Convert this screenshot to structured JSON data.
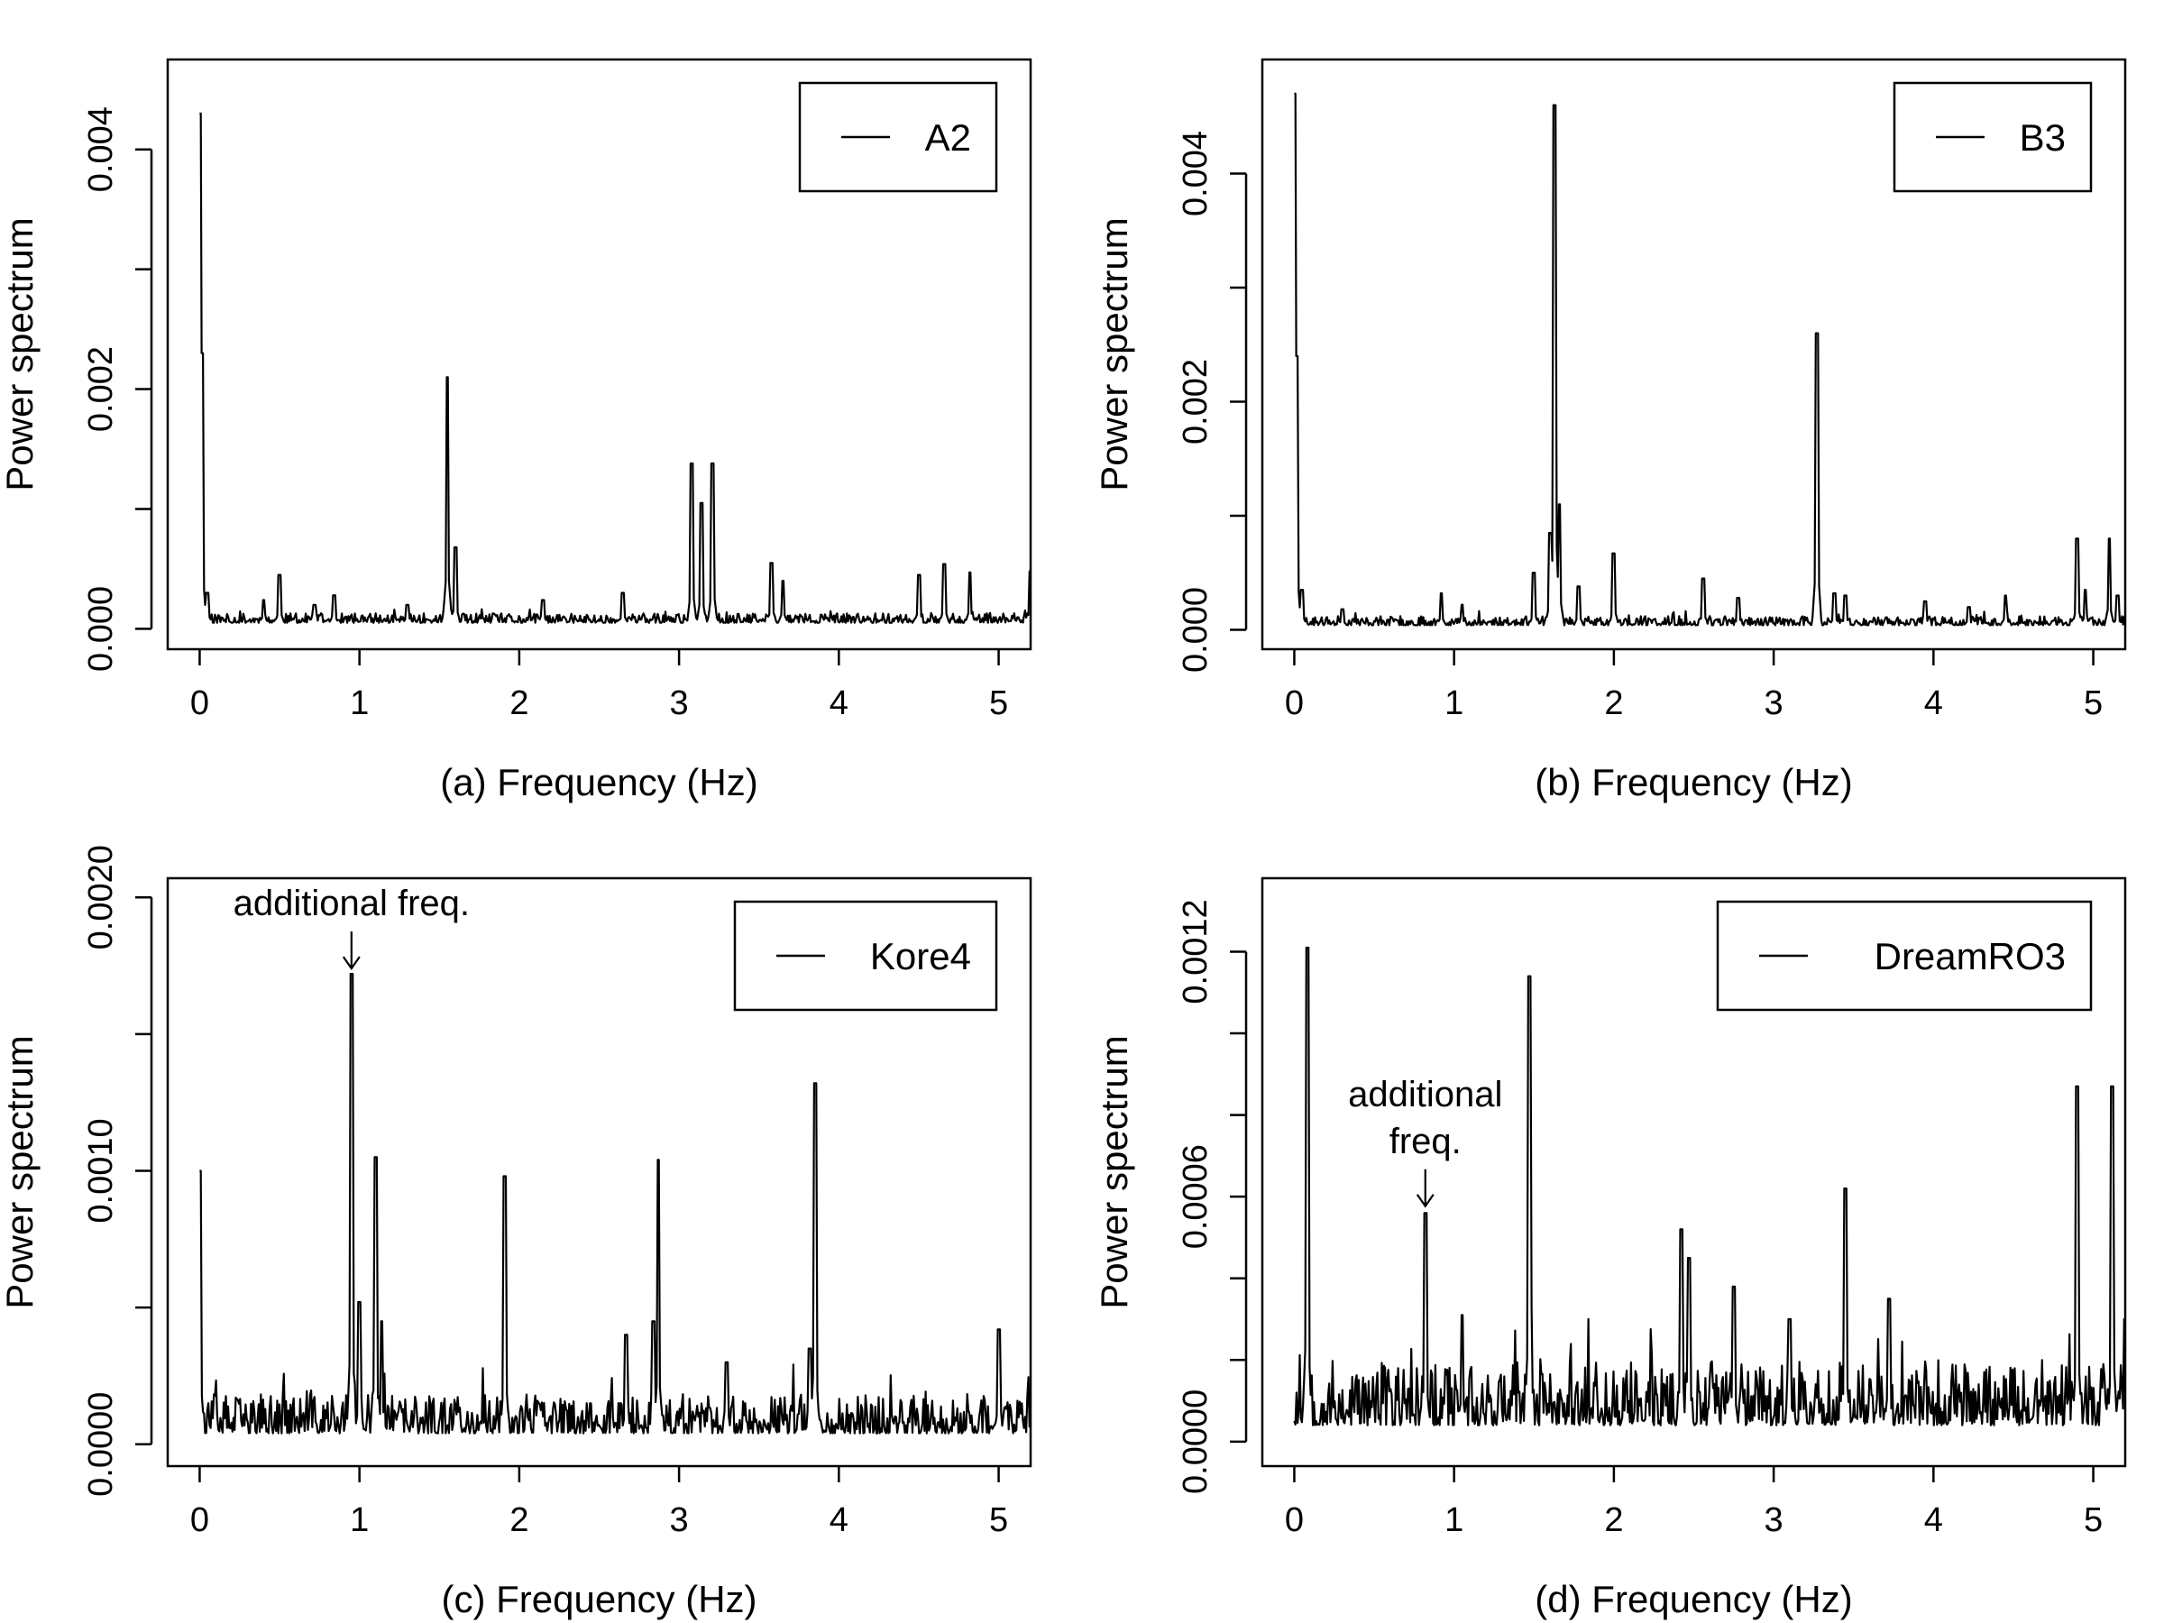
{
  "chart_data": [
    {
      "type": "line",
      "panel": "a",
      "xlabel": "(a) Frequency (Hz)",
      "ylabel": "Power spectrum",
      "xlim": [
        -0.2,
        5.2
      ],
      "ylim": [
        -0.00017,
        0.00475
      ],
      "xticks": [
        0,
        1,
        2,
        3,
        4,
        5
      ],
      "xtick_labels": [
        "0",
        "1",
        "2",
        "3",
        "4",
        "5"
      ],
      "yticks": [
        0,
        0.001,
        0.002,
        0.003,
        0.004
      ],
      "ytick_labels": [
        "0.000",
        "",
        "0.002",
        "",
        "0.004"
      ],
      "legend": "A2",
      "legend_position": "top-right",
      "series": [
        {
          "name": "A2",
          "baseline": 5e-05,
          "noise": 5e-05,
          "seed": 11,
          "peaks": [
            [
              0,
              0.0043
            ],
            [
              0.012,
              0.0023
            ],
            [
              0.05,
              0.0003
            ],
            [
              0.4,
              0.00024
            ],
            [
              0.5,
              0.00045
            ],
            [
              0.72,
              0.0002
            ],
            [
              0.84,
              0.00028
            ],
            [
              1.3,
              0.0002
            ],
            [
              1.55,
              0.0021
            ],
            [
              1.6,
              0.00068
            ],
            [
              2.15,
              0.00024
            ],
            [
              2.65,
              0.0003
            ],
            [
              3.08,
              0.00138
            ],
            [
              3.14,
              0.00105
            ],
            [
              3.21,
              0.00138
            ],
            [
              3.58,
              0.00055
            ],
            [
              3.65,
              0.0004
            ],
            [
              4.5,
              0.00045
            ],
            [
              4.66,
              0.00054
            ],
            [
              4.82,
              0.00047
            ],
            [
              5.2,
              0.00048
            ]
          ]
        }
      ]
    },
    {
      "type": "line",
      "panel": "b",
      "xlabel": "(b) Frequency (Hz)",
      "ylabel": "Power spectrum",
      "xlim": [
        -0.2,
        5.2
      ],
      "ylim": [
        -0.00017,
        0.005
      ],
      "xticks": [
        0,
        1,
        2,
        3,
        4,
        5
      ],
      "xtick_labels": [
        "0",
        "1",
        "2",
        "3",
        "4",
        "5"
      ],
      "yticks": [
        0,
        0.001,
        0.002,
        0.003,
        0.004
      ],
      "ytick_labels": [
        "0.000",
        "",
        "0.002",
        "",
        "0.004"
      ],
      "legend": "B3",
      "legend_position": "top-right",
      "series": [
        {
          "name": "B3",
          "baseline": 4e-05,
          "noise": 5e-05,
          "seed": 23,
          "peaks": [
            [
              0,
              0.0047
            ],
            [
              0.012,
              0.0024
            ],
            [
              0.05,
              0.00035
            ],
            [
              0.3,
              0.00018
            ],
            [
              0.92,
              0.00032
            ],
            [
              1.05,
              0.00022
            ],
            [
              1.5,
              0.0005
            ],
            [
              1.6,
              0.00085
            ],
            [
              1.63,
              0.0046
            ],
            [
              1.66,
              0.0011
            ],
            [
              1.78,
              0.00038
            ],
            [
              2.0,
              0.00067
            ],
            [
              2.56,
              0.00045
            ],
            [
              2.78,
              0.00028
            ],
            [
              3.27,
              0.0026
            ],
            [
              3.38,
              0.00032
            ],
            [
              3.45,
              0.0003
            ],
            [
              3.95,
              0.00025
            ],
            [
              4.22,
              0.0002
            ],
            [
              4.45,
              0.0003
            ],
            [
              4.9,
              0.0008
            ],
            [
              4.95,
              0.00035
            ],
            [
              5.1,
              0.0008
            ],
            [
              5.15,
              0.0003
            ]
          ]
        }
      ]
    },
    {
      "type": "line",
      "panel": "c",
      "xlabel": "(c) Frequency (Hz)",
      "ylabel": "Power spectrum",
      "xlim": [
        -0.2,
        5.2
      ],
      "ylim": [
        -8e-05,
        0.00207
      ],
      "xticks": [
        0,
        1,
        2,
        3,
        4,
        5
      ],
      "xtick_labels": [
        "0",
        "1",
        "2",
        "3",
        "4",
        "5"
      ],
      "yticks": [
        0,
        0.0005,
        0.001,
        0.0015,
        0.002
      ],
      "ytick_labels": [
        "0.0000",
        "",
        "0.0010",
        "",
        "0.0020"
      ],
      "legend": "Kore4",
      "legend_position": "top-right",
      "annotation": {
        "text": "additional freq.",
        "x": 0.95,
        "y": 0.00173
      },
      "series": [
        {
          "name": "Kore4",
          "baseline": 4e-05,
          "noise": 9e-05,
          "seed": 37,
          "peaks": [
            [
              0,
              0.001
            ],
            [
              0.95,
              0.00172
            ],
            [
              1.0,
              0.00052
            ],
            [
              1.1,
              0.00105
            ],
            [
              1.14,
              0.00045
            ],
            [
              1.91,
              0.00098
            ],
            [
              2.67,
              0.0004
            ],
            [
              2.84,
              0.00045
            ],
            [
              2.87,
              0.00104
            ],
            [
              3.3,
              0.0003
            ],
            [
              3.82,
              0.00035
            ],
            [
              3.85,
              0.00132
            ],
            [
              5.0,
              0.00042
            ]
          ]
        }
      ]
    },
    {
      "type": "line",
      "panel": "d",
      "xlabel": "(d) Frequency (Hz)",
      "ylabel": "Power spectrum",
      "xlim": [
        -0.2,
        5.2
      ],
      "ylim": [
        -6e-05,
        0.00138
      ],
      "xticks": [
        0,
        1,
        2,
        3,
        4,
        5
      ],
      "xtick_labels": [
        "0",
        "1",
        "2",
        "3",
        "4",
        "5"
      ],
      "yticks": [
        0,
        0.0002,
        0.0004,
        0.0006,
        0.0008,
        0.001,
        0.0012
      ],
      "ytick_labels": [
        "0.0000",
        "",
        "",
        "0.0006",
        "",
        "",
        "0.0012"
      ],
      "legend": "DreamRO3",
      "legend_position": "top-right",
      "annotation": {
        "text": "additional freq.",
        "lines": [
          "additional",
          "freq."
        ],
        "x": 0.82,
        "y": 0.00057
      },
      "series": [
        {
          "name": "DreamRO3",
          "baseline": 4e-05,
          "noise": 0.0001,
          "seed": 53,
          "peaks": [
            [
              0.08,
              0.00121
            ],
            [
              0.82,
              0.00056
            ],
            [
              1.05,
              0.00031
            ],
            [
              1.47,
              0.00114
            ],
            [
              2.42,
              0.00052
            ],
            [
              2.47,
              0.00045
            ],
            [
              2.75,
              0.00038
            ],
            [
              3.1,
              0.0003
            ],
            [
              3.45,
              0.00062
            ],
            [
              3.72,
              0.00035
            ],
            [
              4.9,
              0.00087
            ],
            [
              5.12,
              0.00087
            ],
            [
              5.2,
              0.0003
            ]
          ]
        }
      ]
    }
  ]
}
